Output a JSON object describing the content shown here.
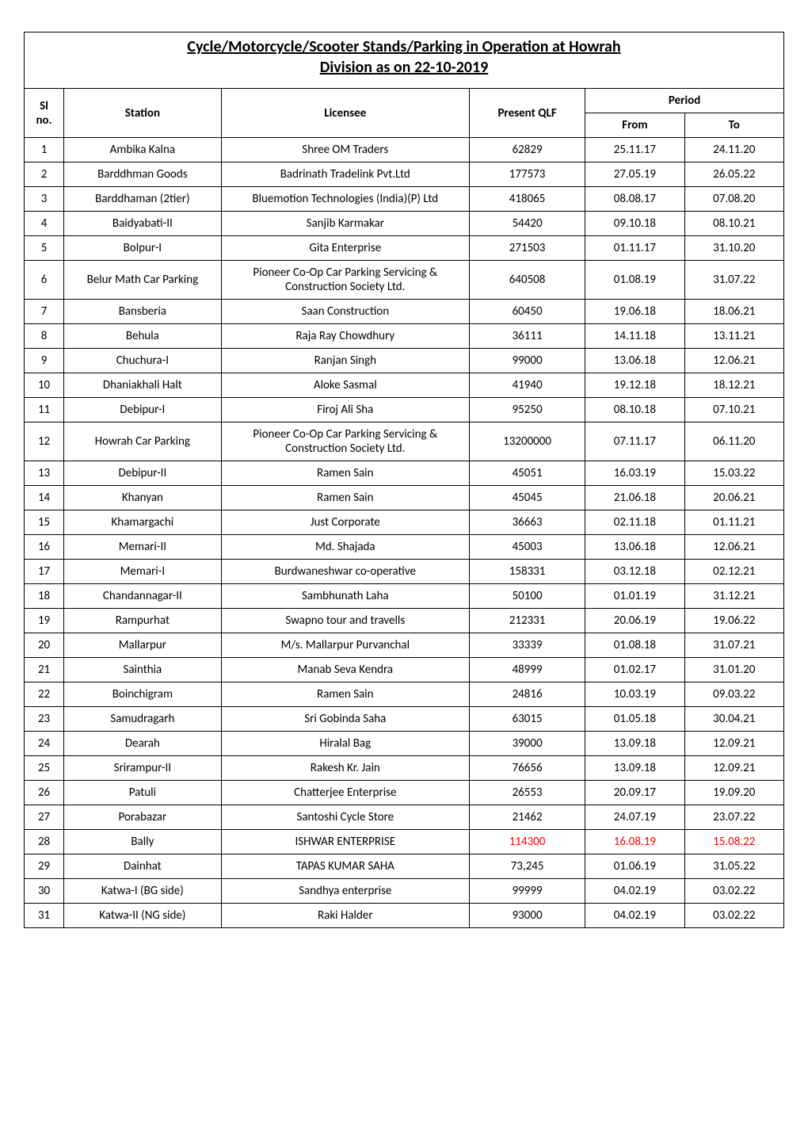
{
  "title_line1": "Cycle/Motorcycle/Scooter Stands/Parking in Operation at Howrah",
  "title_line2": "Division as on 22-10-2019",
  "header": {
    "sl": "Sl no.",
    "station": "Station",
    "licensee": "Licensee",
    "present_qlf": "Present QLF",
    "period": "Period",
    "from": "From",
    "to": "To"
  },
  "rows": [
    {
      "sl": "1",
      "station": "Ambika Kalna",
      "licensee": "Shree OM Traders",
      "qlf": "62829",
      "from": "25.11.17",
      "to": "24.11.20"
    },
    {
      "sl": "2",
      "station": "Barddhman Goods",
      "licensee": "Badrinath Tradelink Pvt.Ltd",
      "qlf": "177573",
      "from": "27.05.19",
      "to": "26.05.22"
    },
    {
      "sl": "3",
      "station": "Barddhaman (2tier)",
      "licensee": "Bluemotion Technologies (India)(P) Ltd",
      "qlf": "418065",
      "from": "08.08.17",
      "to": "07.08.20"
    },
    {
      "sl": "4",
      "station": "Baidyabati-II",
      "licensee": "Sanjib Karmakar",
      "qlf": "54420",
      "from": "09.10.18",
      "to": "08.10.21"
    },
    {
      "sl": "5",
      "station": "Bolpur-I",
      "licensee": "Gita Enterprise",
      "qlf": "271503",
      "from": "01.11.17",
      "to": "31.10.20"
    },
    {
      "sl": "6",
      "station": "Belur Math Car Parking",
      "licensee": "Pioneer Co-Op Car Parking Servicing & Construction Society Ltd.",
      "qlf": "640508",
      "from": "01.08.19",
      "to": "31.07.22"
    },
    {
      "sl": "7",
      "station": "Bansberia",
      "licensee": "Saan Construction",
      "qlf": "60450",
      "from": "19.06.18",
      "to": "18.06.21"
    },
    {
      "sl": "8",
      "station": "Behula",
      "licensee": "Raja Ray Chowdhury",
      "qlf": "36111",
      "from": "14.11.18",
      "to": "13.11.21"
    },
    {
      "sl": "9",
      "station": "Chuchura-I",
      "licensee": "Ranjan Singh",
      "qlf": "99000",
      "from": "13.06.18",
      "to": "12.06.21"
    },
    {
      "sl": "10",
      "station": "Dhaniakhali Halt",
      "licensee": "Aloke Sasmal",
      "qlf": "41940",
      "from": "19.12.18",
      "to": "18.12.21"
    },
    {
      "sl": "11",
      "station": "Debipur-I",
      "licensee": "Firoj Ali Sha",
      "qlf": "95250",
      "from": "08.10.18",
      "to": "07.10.21"
    },
    {
      "sl": "12",
      "station": "Howrah Car Parking",
      "licensee": "Pioneer Co-Op Car Parking Servicing & Construction Society Ltd.",
      "qlf": "13200000",
      "from": "07.11.17",
      "to": "06.11.20"
    },
    {
      "sl": "13",
      "station": "Debipur-II",
      "licensee": "Ramen Sain",
      "qlf": "45051",
      "from": "16.03.19",
      "to": "15.03.22"
    },
    {
      "sl": "14",
      "station": "Khanyan",
      "licensee": "Ramen Sain",
      "qlf": "45045",
      "from": "21.06.18",
      "to": "20.06.21"
    },
    {
      "sl": "15",
      "station": "Khamargachi",
      "licensee": "Just Corporate",
      "qlf": "36663",
      "from": "02.11.18",
      "to": "01.11.21"
    },
    {
      "sl": "16",
      "station": "Memari-II",
      "licensee": "Md. Shajada",
      "qlf": "45003",
      "from": "13.06.18",
      "to": "12.06.21"
    },
    {
      "sl": "17",
      "station": "Memari-I",
      "licensee": "Burdwaneshwar co-operative",
      "qlf": "158331",
      "from": "03.12.18",
      "to": "02.12.21"
    },
    {
      "sl": "18",
      "station": "Chandannagar-II",
      "licensee": "Sambhunath Laha",
      "qlf": "50100",
      "from": "01.01.19",
      "to": "31.12.21"
    },
    {
      "sl": "19",
      "station": "Rampurhat",
      "licensee": "Swapno tour and travells",
      "qlf": "212331",
      "from": "20.06.19",
      "to": "19.06.22"
    },
    {
      "sl": "20",
      "station": "Mallarpur",
      "licensee": "M/s. Mallarpur Purvanchal",
      "qlf": "33339",
      "from": "01.08.18",
      "to": "31.07.21"
    },
    {
      "sl": "21",
      "station": "Sainthia",
      "licensee": "Manab Seva Kendra",
      "qlf": "48999",
      "from": "01.02.17",
      "to": "31.01.20"
    },
    {
      "sl": "22",
      "station": "Boinchigram",
      "licensee": "Ramen Sain",
      "qlf": "24816",
      "from": "10.03.19",
      "to": "09.03.22"
    },
    {
      "sl": "23",
      "station": "Samudragarh",
      "licensee": "Sri Gobinda Saha",
      "qlf": "63015",
      "from": "01.05.18",
      "to": "30.04.21"
    },
    {
      "sl": "24",
      "station": "Dearah",
      "licensee": "Hiralal Bag",
      "qlf": "39000",
      "from": "13.09.18",
      "to": "12.09.21"
    },
    {
      "sl": "25",
      "station": "Srirampur-II",
      "licensee": "Rakesh Kr. Jain",
      "qlf": "76656",
      "from": "13.09.18",
      "to": "12.09.21"
    },
    {
      "sl": "26",
      "station": "Patuli",
      "licensee": "Chatterjee Enterprise",
      "qlf": "26553",
      "from": "20.09.17",
      "to": "19.09.20"
    },
    {
      "sl": "27",
      "station": "Porabazar",
      "licensee": "Santoshi Cycle Store",
      "qlf": "21462",
      "from": "24.07.19",
      "to": "23.07.22"
    },
    {
      "sl": "28",
      "station": "Bally",
      "licensee": "ISHWAR ENTERPRISE",
      "qlf": "114300",
      "from": "16.08.19",
      "to": "15.08.22",
      "qlf_red": true,
      "from_red": true,
      "to_red": true
    },
    {
      "sl": "29",
      "station": "Dainhat",
      "licensee": "TAPAS KUMAR SAHA",
      "qlf": "73,245",
      "from": "01.06.19",
      "to": "31.05.22"
    },
    {
      "sl": "30",
      "station": "Katwa-I (BG side)",
      "licensee": "Sandhya enterprise",
      "qlf": "99999",
      "from": "04.02.19",
      "to": "03.02.22"
    },
    {
      "sl": "31",
      "station": "Katwa-II (NG side)",
      "licensee": "Raki Halder",
      "qlf": "93000",
      "from": "04.02.19",
      "to": "03.02.22"
    }
  ]
}
